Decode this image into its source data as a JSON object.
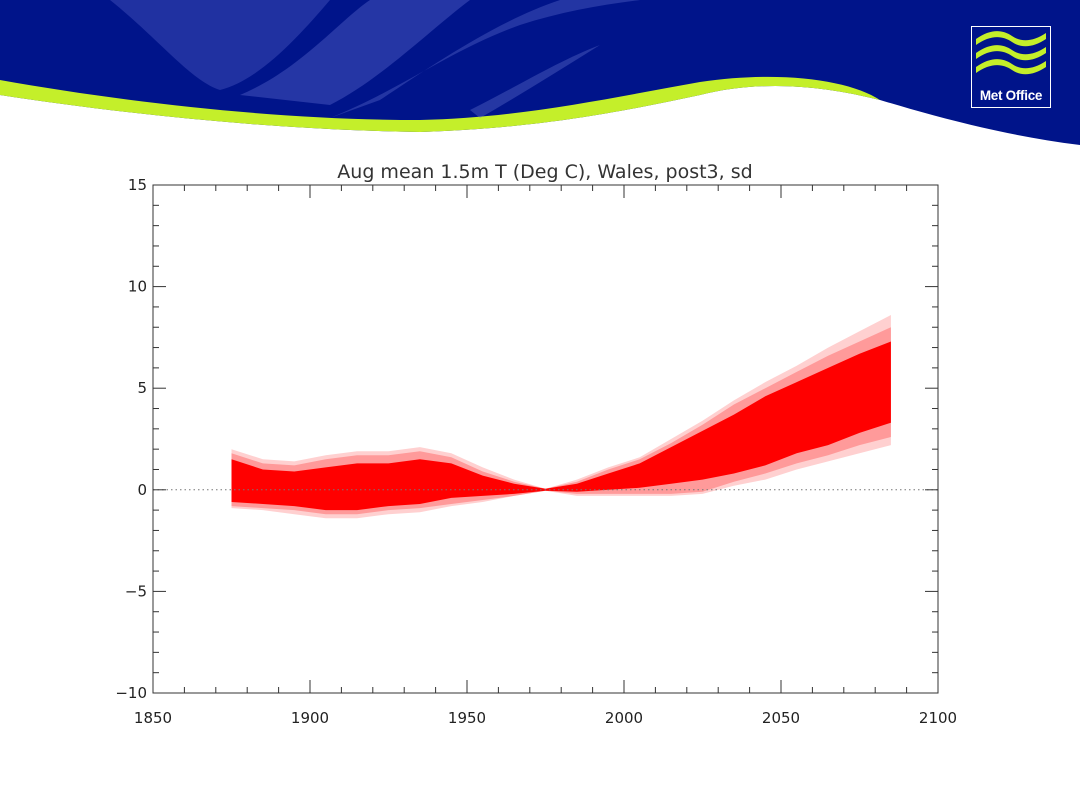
{
  "brand": {
    "logo_text": "Met Office",
    "colors": {
      "navy": "#00148a",
      "mid_blue": "#2b3aa8",
      "lime": "#c4ef2a",
      "white": "#ffffff"
    }
  },
  "chart_data": {
    "type": "area",
    "title": "Aug mean 1.5m T (Deg C), Wales, post3, sd",
    "xlabel": "",
    "ylabel": "",
    "xlim": [
      1850,
      2100
    ],
    "ylim": [
      -10,
      15
    ],
    "x_ticks": [
      1850,
      1900,
      1950,
      2000,
      2050,
      2100
    ],
    "y_ticks": [
      15,
      10,
      5,
      0,
      -5,
      -10
    ],
    "y_tick_labels": [
      "15",
      "10",
      "5",
      "0",
      "−5",
      "−10"
    ],
    "grid": false,
    "reference_line": {
      "y": 0,
      "style": "dotted"
    },
    "x": [
      1875,
      1885,
      1895,
      1905,
      1915,
      1925,
      1935,
      1945,
      1955,
      1965,
      1975,
      1985,
      1995,
      2005,
      2015,
      2025,
      2035,
      2045,
      2055,
      2065,
      2075,
      2085
    ],
    "bands": [
      {
        "color": "#ffd0d0",
        "upper": [
          2.0,
          1.5,
          1.4,
          1.7,
          1.9,
          1.9,
          2.1,
          1.8,
          1.1,
          0.5,
          0.05,
          0.5,
          1.1,
          1.6,
          2.5,
          3.4,
          4.4,
          5.3,
          6.1,
          7.0,
          7.8,
          8.6
        ],
        "lower": [
          -0.9,
          -1.0,
          -1.2,
          -1.4,
          -1.4,
          -1.2,
          -1.1,
          -0.8,
          -0.6,
          -0.3,
          -0.05,
          -0.3,
          -0.3,
          -0.3,
          -0.3,
          -0.2,
          0.2,
          0.5,
          1.0,
          1.4,
          1.8,
          2.2
        ]
      },
      {
        "color": "#ff9a9a",
        "upper": [
          1.8,
          1.3,
          1.2,
          1.5,
          1.7,
          1.7,
          1.9,
          1.6,
          0.9,
          0.4,
          0.05,
          0.4,
          1.0,
          1.5,
          2.3,
          3.2,
          4.2,
          5.0,
          5.8,
          6.6,
          7.3,
          8.0
        ],
        "lower": [
          -0.8,
          -0.9,
          -1.0,
          -1.2,
          -1.2,
          -1.0,
          -0.9,
          -0.7,
          -0.5,
          -0.3,
          -0.05,
          -0.2,
          -0.2,
          -0.2,
          -0.2,
          -0.1,
          0.4,
          0.8,
          1.3,
          1.7,
          2.2,
          2.6
        ]
      },
      {
        "color": "#ff0000",
        "upper": [
          1.5,
          1.0,
          0.9,
          1.1,
          1.3,
          1.3,
          1.5,
          1.3,
          0.7,
          0.3,
          0.05,
          0.3,
          0.8,
          1.3,
          2.1,
          2.9,
          3.7,
          4.6,
          5.3,
          6.0,
          6.7,
          7.3
        ],
        "lower": [
          -0.6,
          -0.7,
          -0.8,
          -1.0,
          -1.0,
          -0.8,
          -0.7,
          -0.4,
          -0.3,
          -0.2,
          -0.05,
          -0.1,
          0.0,
          0.1,
          0.3,
          0.5,
          0.8,
          1.2,
          1.8,
          2.2,
          2.8,
          3.3
        ]
      }
    ]
  }
}
